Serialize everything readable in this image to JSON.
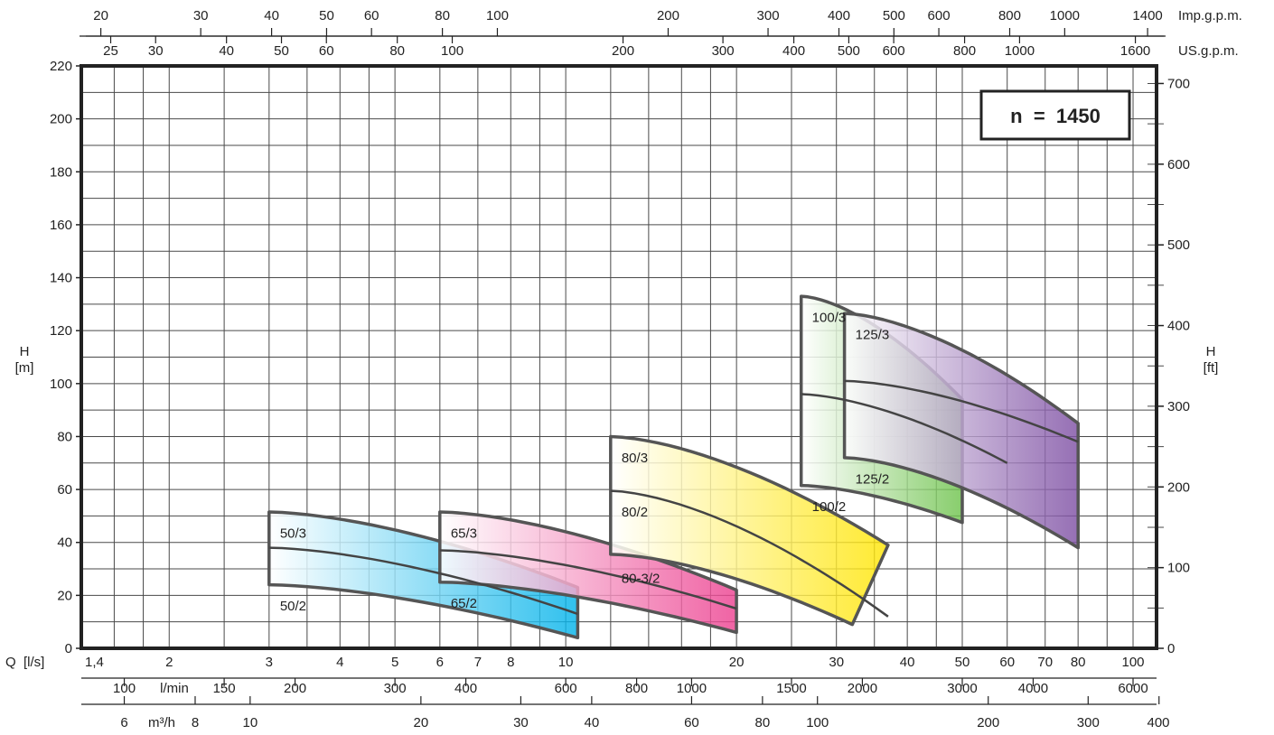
{
  "chart_data": {
    "type": "area",
    "title": "",
    "speed_label": "n  =  1450",
    "flow_axis_label": "Q  [l/s]",
    "head_axis_left": {
      "line1": "H",
      "line2": "[m]"
    },
    "head_axis_right": {
      "line1": "H",
      "line2": "[ft]"
    },
    "x_scale": "log",
    "xlim": [
      1.4,
      110
    ],
    "ylim": [
      0,
      220
    ],
    "grid": true,
    "top_scales": {
      "imp": {
        "unit": "Imp.g.p.m.",
        "labels": [
          "20",
          "30",
          "40",
          "50",
          "60",
          "80",
          "100",
          "200",
          "300",
          "400",
          "500",
          "600",
          "800",
          "1000",
          "1400"
        ]
      },
      "us": {
        "unit": "US.g.p.m.",
        "labels": [
          "25",
          "30",
          "40",
          "50",
          "60",
          "80",
          "100",
          "200",
          "300",
          "400",
          "500",
          "600",
          "800",
          "1000",
          "1600"
        ]
      }
    },
    "bottom_scales": {
      "ls": {
        "labels": [
          "1,4",
          "2",
          "3",
          "4",
          "5",
          "6",
          "7",
          "8",
          "10",
          "20",
          "30",
          "40",
          "50",
          "60",
          "70",
          "80",
          "100"
        ]
      },
      "lmin": {
        "unit": "l/min",
        "labels": [
          "100",
          "150",
          "200",
          "300",
          "400",
          "600",
          "800",
          "1000",
          "1500",
          "2000",
          "3000",
          "4000",
          "6000"
        ]
      },
      "m3h": {
        "unit": "m³/h",
        "labels": [
          "6",
          "8",
          "10",
          "20",
          "30",
          "40",
          "60",
          "80",
          "100",
          "200",
          "300",
          "400"
        ]
      }
    },
    "y_ticks_m": [
      "0",
      "20",
      "40",
      "60",
      "80",
      "100",
      "120",
      "140",
      "160",
      "180",
      "200",
      "220"
    ],
    "y_ticks_ft": [
      "0",
      "100",
      "200",
      "300",
      "400",
      "500",
      "600",
      "700"
    ],
    "series": [
      {
        "name": "50/2",
        "color": "#00b2ea",
        "q": [
          3,
          10.5
        ],
        "h": [
          24,
          4
        ]
      },
      {
        "name": "50/3",
        "color": "#00b2ea",
        "q": [
          3,
          10.5
        ],
        "h": [
          51.5,
          23
        ]
      },
      {
        "name": "65/2",
        "color": "#ec3f8f",
        "q": [
          6,
          20
        ],
        "h": [
          25,
          6
        ]
      },
      {
        "name": "65/3",
        "color": "#ec3f8f",
        "q": [
          6,
          20
        ],
        "h": [
          51.5,
          22
        ]
      },
      {
        "name": "80-3/2",
        "color": "#ffe500",
        "q": [
          12,
          32
        ],
        "h": [
          35.5,
          9
        ]
      },
      {
        "name": "80/2",
        "color": "#ffe500",
        "q": [
          12,
          37
        ],
        "h": [
          59.5,
          12
        ]
      },
      {
        "name": "80/3",
        "color": "#ffe500",
        "q": [
          12,
          37
        ],
        "h": [
          80,
          39
        ]
      },
      {
        "name": "100/2",
        "color": "#6cc24a",
        "q": [
          26,
          50
        ],
        "h": [
          61.5,
          47.5
        ]
      },
      {
        "name": "100/3",
        "color": "#6cc24a",
        "q": [
          26,
          50
        ],
        "h": [
          133,
          94
        ]
      },
      {
        "name": "125/2",
        "color": "#7d4ea3",
        "q": [
          31,
          80
        ],
        "h": [
          72,
          38
        ]
      },
      {
        "name": "125/3",
        "color": "#7d4ea3",
        "q": [
          31,
          80
        ],
        "h": [
          126.5,
          85
        ]
      }
    ]
  }
}
